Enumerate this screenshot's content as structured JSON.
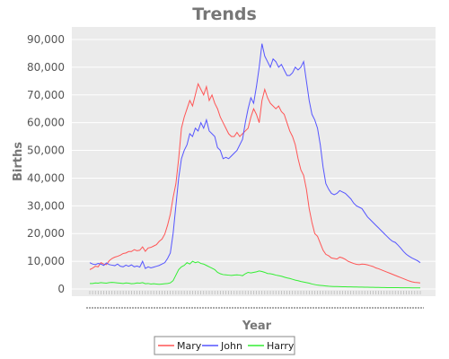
{
  "chart_data": {
    "type": "line",
    "title": "Trends",
    "xlabel": "Year",
    "ylabel": "Births",
    "ylim": [
      0,
      90000
    ],
    "yticks": [
      0,
      10000,
      20000,
      30000,
      40000,
      50000,
      60000,
      70000,
      80000,
      90000
    ],
    "ytick_labels": [
      "0",
      "10,000",
      "20,000",
      "30,000",
      "40,000",
      "50,000",
      "60,000",
      "70,000",
      "80,000",
      "90,000"
    ],
    "grid": true,
    "legend_position": "bottom",
    "series": [
      {
        "name": "Mary",
        "color": "#ff5555",
        "values": [
          7000,
          7500,
          8200,
          8000,
          9500,
          9000,
          8800,
          10200,
          11000,
          11500,
          11800,
          12200,
          12800,
          13000,
          13500,
          13500,
          14200,
          13800,
          14000,
          15200,
          13600,
          14800,
          15000,
          15500,
          16000,
          17200,
          18000,
          19800,
          23000,
          27000,
          33000,
          38000,
          47000,
          58000,
          62000,
          65000,
          68000,
          66000,
          70000,
          74000,
          72000,
          70000,
          73000,
          68000,
          70000,
          67000,
          65000,
          62000,
          60000,
          58000,
          56000,
          55000,
          55000,
          56500,
          55000,
          56000,
          57000,
          58000,
          62000,
          65000,
          63000,
          60000,
          68000,
          72000,
          69000,
          67000,
          66000,
          65000,
          66000,
          64000,
          63000,
          60000,
          57000,
          55000,
          52000,
          47000,
          43000,
          41000,
          36000,
          29000,
          24000,
          20000,
          19000,
          16500,
          14000,
          12500,
          12000,
          11200,
          11000,
          10800,
          11500,
          11200,
          10700,
          10000,
          9600,
          9200,
          8900,
          8800,
          9000,
          8900,
          8700,
          8400,
          8100,
          7600,
          7300,
          6900,
          6500,
          6100,
          5700,
          5300,
          4900,
          4500,
          4100,
          3700,
          3300,
          2900,
          2600,
          2400,
          2300,
          2200
        ]
      },
      {
        "name": "John",
        "color": "#5555ff",
        "values": [
          9500,
          9000,
          8800,
          9200,
          9000,
          8500,
          9400,
          8800,
          8600,
          8400,
          9000,
          8200,
          8000,
          8600,
          8200,
          8700,
          8000,
          8300,
          7900,
          10000,
          7400,
          8000,
          7600,
          7900,
          8200,
          8500,
          9000,
          9500,
          11000,
          13000,
          20000,
          30000,
          40000,
          47000,
          50000,
          52000,
          56000,
          55000,
          58000,
          57000,
          60000,
          58000,
          61000,
          57000,
          56000,
          55000,
          51000,
          50000,
          47000,
          47500,
          47000,
          48000,
          49000,
          50000,
          52000,
          54000,
          60000,
          65000,
          69000,
          67000,
          73000,
          80000,
          88500,
          84000,
          82000,
          80000,
          83000,
          82000,
          80000,
          81000,
          79000,
          77000,
          77000,
          78000,
          80000,
          79000,
          80000,
          82000,
          75000,
          68000,
          63000,
          61000,
          58000,
          52000,
          44000,
          38000,
          36000,
          34500,
          34000,
          34500,
          35500,
          35000,
          34500,
          33500,
          32500,
          31000,
          30000,
          29500,
          29000,
          27500,
          26000,
          25000,
          24000,
          23000,
          22000,
          21000,
          20000,
          19000,
          18000,
          17200,
          16800,
          15800,
          14700,
          13500,
          12500,
          11800,
          11200,
          10700,
          10200,
          9500
        ]
      },
      {
        "name": "Harry",
        "color": "#33ee33",
        "values": [
          2000,
          2000,
          2200,
          2100,
          2300,
          2200,
          2100,
          2300,
          2400,
          2300,
          2200,
          2100,
          2000,
          2200,
          2100,
          1900,
          2000,
          2200,
          2100,
          2300,
          1900,
          2000,
          1800,
          1900,
          1800,
          1700,
          1800,
          1900,
          2000,
          2200,
          3000,
          5000,
          7000,
          8000,
          8500,
          9500,
          9000,
          10000,
          9500,
          9800,
          9200,
          9000,
          8500,
          8000,
          7500,
          7000,
          6000,
          5500,
          5200,
          5100,
          5000,
          4900,
          5000,
          5100,
          5000,
          4800,
          5500,
          6000,
          5800,
          6000,
          6200,
          6500,
          6300,
          6000,
          5600,
          5500,
          5300,
          5000,
          4800,
          4600,
          4300,
          4000,
          3800,
          3500,
          3200,
          3000,
          2700,
          2500,
          2300,
          2100,
          1800,
          1600,
          1400,
          1300,
          1200,
          1100,
          1000,
          950,
          900,
          870,
          850,
          830,
          800,
          780,
          760,
          740,
          720,
          700,
          680,
          660,
          640,
          620,
          600,
          580,
          560,
          540,
          520,
          500,
          500,
          490,
          480,
          470,
          460,
          450,
          440,
          430,
          420,
          410,
          400,
          390
        ]
      }
    ]
  }
}
